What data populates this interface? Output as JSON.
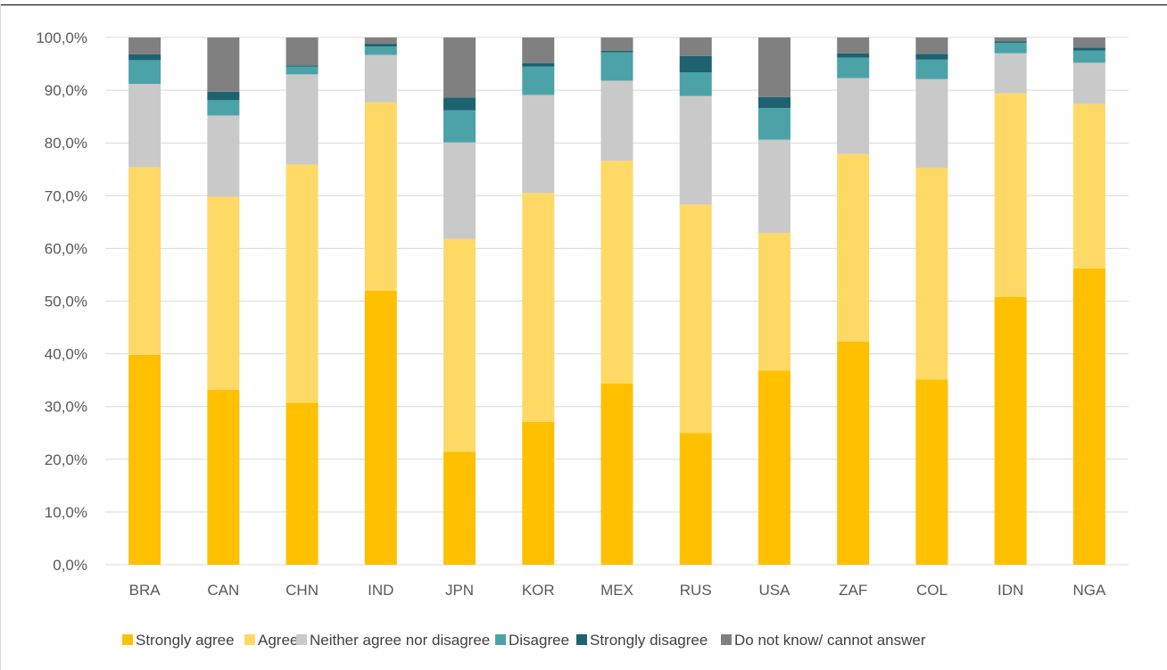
{
  "chart_data": {
    "type": "bar",
    "stacked": true,
    "title": "",
    "xlabel": "",
    "ylabel": "",
    "ylim": [
      0,
      100
    ],
    "grid": true,
    "legend_position": "bottom",
    "y_ticks": [
      "0,0%",
      "10,0%",
      "20,0%",
      "30,0%",
      "40,0%",
      "50,0%",
      "60,0%",
      "70,0%",
      "80,0%",
      "90,0%",
      "100,0%"
    ],
    "categories": [
      "BRA",
      "CAN",
      "CHN",
      "IND",
      "JPN",
      "KOR",
      "MEX",
      "RUS",
      "USA",
      "ZAF",
      "COL",
      "IDN",
      "NGA"
    ],
    "series": [
      {
        "name": "Strongly agree",
        "color": "#FFC000",
        "values": [
          39.8,
          33.2,
          30.7,
          52.0,
          21.4,
          27.1,
          34.4,
          25.0,
          36.8,
          42.3,
          35.1,
          50.8,
          56.2
        ]
      },
      {
        "name": "Agree",
        "color": "#FFD966",
        "values": [
          35.6,
          36.6,
          45.2,
          35.7,
          40.4,
          43.4,
          42.2,
          43.3,
          26.1,
          35.6,
          40.2,
          38.6,
          31.2
        ]
      },
      {
        "name": "Neither agree nor disagree",
        "color": "#C9C9C9",
        "values": [
          15.8,
          15.4,
          17.1,
          9.0,
          18.3,
          18.6,
          15.2,
          20.6,
          17.7,
          14.4,
          16.8,
          7.6,
          7.8
        ]
      },
      {
        "name": "Disagree",
        "color": "#4BA3A8",
        "values": [
          4.5,
          2.9,
          1.5,
          1.6,
          6.1,
          5.4,
          5.4,
          4.5,
          6.0,
          3.9,
          3.7,
          2.0,
          2.3
        ]
      },
      {
        "name": "Strongly disagree",
        "color": "#1E6170",
        "values": [
          1.1,
          1.6,
          0.2,
          0.5,
          2.4,
          0.6,
          0.3,
          3.1,
          2.1,
          0.8,
          1.1,
          0.3,
          0.6
        ]
      },
      {
        "name": "Do not know/ cannot answer",
        "color": "#808080",
        "values": [
          3.2,
          10.3,
          5.3,
          1.2,
          11.4,
          4.9,
          2.5,
          3.5,
          11.3,
          3.0,
          3.1,
          0.7,
          1.9
        ]
      }
    ]
  }
}
